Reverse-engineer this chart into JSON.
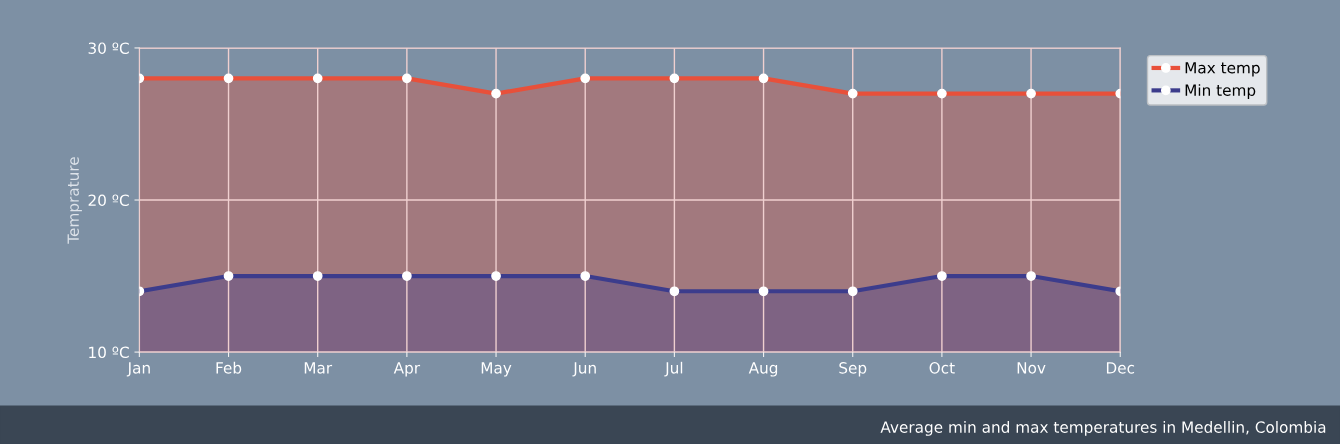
{
  "chart_data": {
    "type": "area",
    "ylabel": "Temprature",
    "categories": [
      "Jan",
      "Feb",
      "Mar",
      "Apr",
      "May",
      "Jun",
      "Jul",
      "Aug",
      "Sep",
      "Oct",
      "Nov",
      "Dec"
    ],
    "series": [
      {
        "name": "Max temp",
        "color": "#e8503a",
        "values": [
          28,
          28,
          28,
          28,
          27,
          28,
          28,
          28,
          27,
          27,
          27,
          27
        ]
      },
      {
        "name": "Min temp",
        "color": "#3c3c8c",
        "values": [
          14,
          15,
          15,
          15,
          15,
          15,
          14,
          14,
          14,
          15,
          15,
          14
        ]
      }
    ],
    "ylim": [
      10,
      30
    ],
    "yticks": [
      {
        "value": 10,
        "label": "10 ºC"
      },
      {
        "value": 20,
        "label": "20 ºC"
      },
      {
        "value": 30,
        "label": "30 ºC"
      }
    ],
    "grid": true,
    "legend": "top right",
    "marker": "circle",
    "line_style": "solid",
    "annotations": [
      "Average min and max temperatures in Medellin, Colombia"
    ]
  }
}
